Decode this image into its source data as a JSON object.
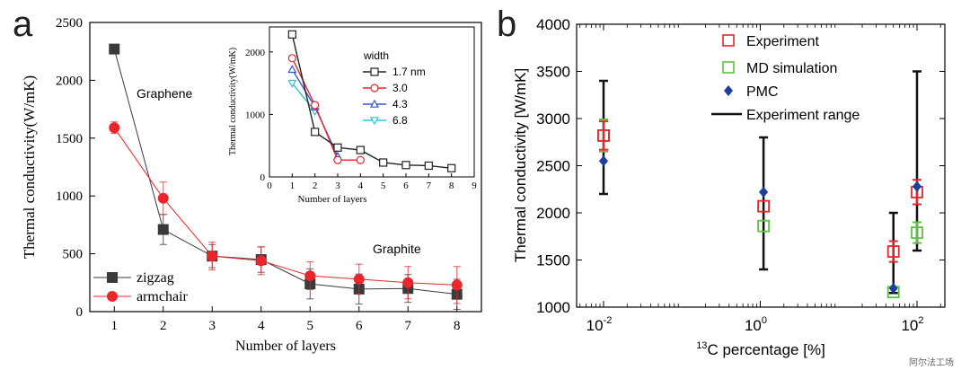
{
  "panel_a": {
    "letter": "a",
    "annotations": {
      "graphene": "Graphene",
      "graphite": "Graphite"
    },
    "chart_data": {
      "type": "line",
      "title": "",
      "xlabel": "Number of layers",
      "ylabel": "Thermal conductivity(W/mK)",
      "xlim": [
        0.5,
        8.5
      ],
      "ylim": [
        0,
        2500
      ],
      "x_ticks": [
        1,
        2,
        3,
        4,
        5,
        6,
        7,
        8
      ],
      "y_ticks": [
        0,
        500,
        1000,
        1500,
        2000,
        2500
      ],
      "x": [
        1,
        2,
        3,
        4,
        5,
        6,
        7,
        8
      ],
      "series": [
        {
          "name": "zigzag",
          "color": "#3a3a3a",
          "marker": "square",
          "values": [
            2270,
            710,
            480,
            450,
            240,
            195,
            200,
            150
          ],
          "errors": [
            30,
            130,
            100,
            110,
            130,
            130,
            120,
            130
          ]
        },
        {
          "name": "armchair",
          "color": "#e8262b",
          "marker": "circle",
          "values": [
            1590,
            980,
            480,
            440,
            310,
            280,
            250,
            230
          ],
          "errors": [
            50,
            140,
            120,
            120,
            120,
            130,
            140,
            160
          ]
        }
      ]
    },
    "inset": {
      "chart_data": {
        "type": "line",
        "xlabel": "Number of layers",
        "ylabel": "Thermal conductivity(W/mK)",
        "xlim": [
          0,
          9
        ],
        "ylim": [
          0,
          2400
        ],
        "x_ticks": [
          0,
          1,
          2,
          3,
          4,
          5,
          6,
          7,
          8,
          9
        ],
        "y_ticks": [
          0,
          1000,
          2000
        ],
        "legend_title": "width",
        "series": [
          {
            "name": "1.7 nm",
            "color": "#222222",
            "marker": "square",
            "x": [
              1,
              2,
              3,
              4,
              5,
              6,
              7,
              8
            ],
            "values": [
              2280,
              720,
              470,
              430,
              230,
              190,
              180,
              140
            ]
          },
          {
            "name": "3.0",
            "color": "#e8262b",
            "marker": "circle",
            "x": [
              1,
              2,
              3,
              4
            ],
            "values": [
              1900,
              1150,
              270,
              270
            ]
          },
          {
            "name": "4.3",
            "color": "#3355cc",
            "marker": "triangle-up",
            "x": [
              1,
              2,
              3
            ],
            "values": [
              1720,
              1120,
              330
            ]
          },
          {
            "name": "6.8",
            "color": "#33c0d0",
            "marker": "triangle-down",
            "x": [
              1,
              2
            ],
            "values": [
              1500,
              1050
            ]
          }
        ]
      }
    }
  },
  "panel_b": {
    "letter": "b",
    "chart_data": {
      "type": "scatter",
      "title": "",
      "xlabel_superscript": "13",
      "xlabel": "C percentage [%]",
      "ylabel": "Thermal conductivity [W/mK]",
      "x_scale": "log",
      "ylim": [
        1000,
        4000
      ],
      "y_ticks": [
        1000,
        1500,
        2000,
        2500,
        3000,
        3500,
        4000
      ],
      "x_ticks": [
        {
          "base": "10",
          "exp": "-2"
        },
        {
          "base": "10",
          "exp": "0"
        },
        {
          "base": "10",
          "exp": "2"
        }
      ],
      "legend_position": "top-center",
      "groups": [
        {
          "x": 0.01,
          "experiment": 2820,
          "experiment_err": 150,
          "md": 2820,
          "md_err": 170,
          "pmc": 2550,
          "range": [
            2200,
            3400
          ]
        },
        {
          "x": 1.1,
          "experiment": 2070,
          "experiment_err": 0,
          "md": 1860,
          "md_err": 0,
          "pmc": 2220,
          "range": [
            1400,
            2800
          ]
        },
        {
          "x": 50,
          "experiment": 1590,
          "experiment_err": 110,
          "md": 1160,
          "md_err": 0,
          "pmc": 1200,
          "range": [
            1150,
            2000
          ]
        },
        {
          "x": 100,
          "experiment": 2220,
          "experiment_err": 130,
          "md": 1790,
          "md_err": 110,
          "pmc": 2280,
          "range": [
            1600,
            3500
          ]
        }
      ],
      "legend": [
        {
          "name": "Experiment",
          "color": "#e8262b",
          "marker": "open-square"
        },
        {
          "name": "MD simulation",
          "color": "#5cc341",
          "marker": "open-square"
        },
        {
          "name": "PMC",
          "color": "#1d3e9a",
          "marker": "diamond"
        },
        {
          "name": "Experiment range",
          "color": "#111111",
          "marker": "line"
        }
      ]
    }
  },
  "watermark": "阿尔法工场"
}
